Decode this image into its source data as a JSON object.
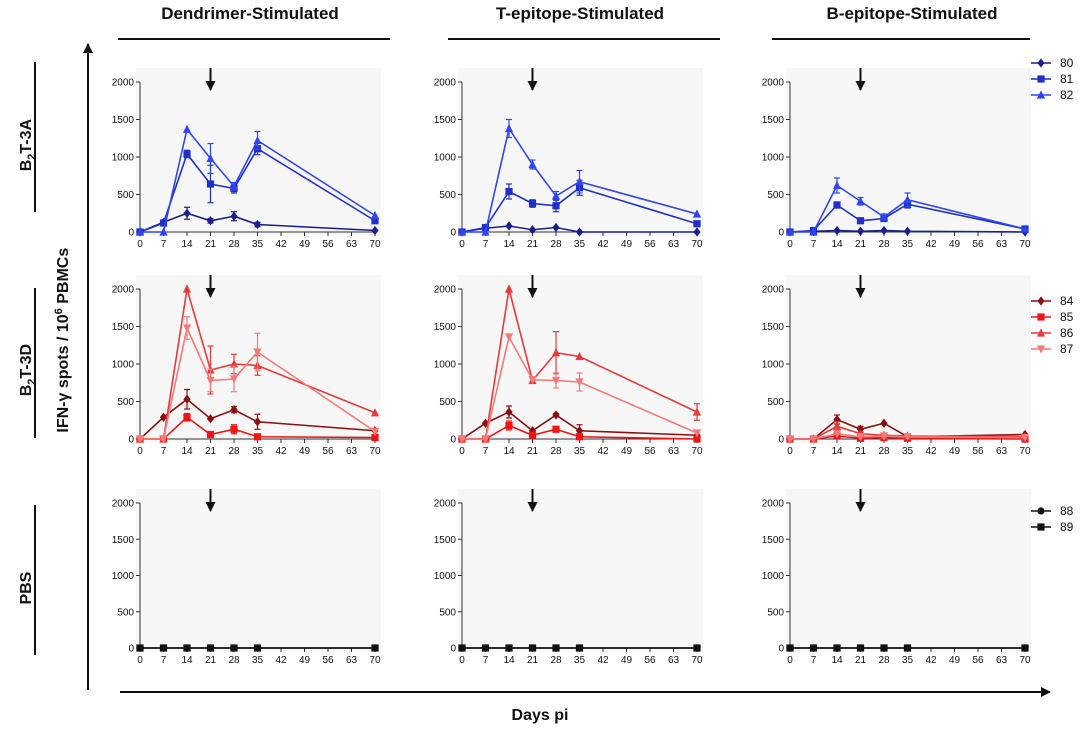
{
  "figure": {
    "ylabel_pre": "IFN-γ spots / 10",
    "ylabel_sup": "6",
    "ylabel_post": " PBMCs",
    "xlabel": "Days pi"
  },
  "columns": [
    "Dendrimer-Stimulated",
    "T-epitope-Stimulated",
    "B-epitope-Stimulated"
  ],
  "rows": [
    {
      "pre": "B",
      "sub": "2",
      "post": "T-3A"
    },
    {
      "pre": "B",
      "sub": "2",
      "post": "T-3D"
    },
    {
      "pre": "",
      "sub": "",
      "post": "PBS"
    }
  ],
  "legends": [
    {
      "items": [
        {
          "label": "80",
          "color": "#1a1f8a",
          "marker": "diamond"
        },
        {
          "label": "81",
          "color": "#1f2fc8",
          "marker": "square"
        },
        {
          "label": "82",
          "color": "#2f45f0",
          "marker": "triangle"
        }
      ]
    },
    {
      "items": [
        {
          "label": "84",
          "color": "#8b0f0f",
          "marker": "diamond"
        },
        {
          "label": "85",
          "color": "#ee1515",
          "marker": "square"
        },
        {
          "label": "86",
          "color": "#e83a3a",
          "marker": "triangle"
        },
        {
          "label": "87",
          "color": "#f47a7a",
          "marker": "triangle-down"
        }
      ]
    },
    {
      "items": [
        {
          "label": "88",
          "color": "#111111",
          "marker": "circle"
        },
        {
          "label": "89",
          "color": "#111111",
          "marker": "square"
        }
      ]
    }
  ],
  "chart_data": [
    {
      "type": "line",
      "row": 0,
      "col": 0,
      "ylim": [
        0,
        2000
      ],
      "arrow_day": 21,
      "x": [
        0,
        7,
        14,
        21,
        28,
        35,
        70
      ],
      "series": [
        {
          "name": "80",
          "values": [
            0,
            130,
            250,
            150,
            210,
            100,
            20
          ],
          "errors": [
            0,
            20,
            80,
            30,
            60,
            30,
            0
          ]
        },
        {
          "name": "81",
          "values": [
            0,
            120,
            1040,
            640,
            580,
            1110,
            150
          ],
          "errors": [
            0,
            0,
            50,
            250,
            60,
            80,
            30
          ]
        },
        {
          "name": "82",
          "values": [
            0,
            0,
            1370,
            980,
            610,
            1220,
            220
          ],
          "errors": [
            0,
            0,
            0,
            200,
            50,
            120,
            0
          ]
        }
      ]
    },
    {
      "type": "line",
      "row": 0,
      "col": 1,
      "ylim": [
        0,
        2000
      ],
      "arrow_day": 21,
      "x": [
        0,
        7,
        14,
        21,
        28,
        35,
        70
      ],
      "series": [
        {
          "name": "80",
          "values": [
            0,
            50,
            80,
            30,
            60,
            0,
            0
          ],
          "errors": [
            0,
            0,
            0,
            0,
            0,
            0,
            0
          ]
        },
        {
          "name": "81",
          "values": [
            0,
            60,
            540,
            380,
            350,
            590,
            110
          ],
          "errors": [
            0,
            0,
            100,
            50,
            80,
            100,
            0
          ]
        },
        {
          "name": "82",
          "values": [
            0,
            0,
            1380,
            900,
            480,
            670,
            240
          ],
          "errors": [
            0,
            0,
            120,
            60,
            60,
            150,
            0
          ]
        }
      ]
    },
    {
      "type": "line",
      "row": 0,
      "col": 2,
      "ylim": [
        0,
        2000
      ],
      "arrow_day": 21,
      "x": [
        0,
        7,
        14,
        21,
        28,
        35,
        70
      ],
      "series": [
        {
          "name": "80",
          "values": [
            0,
            10,
            20,
            10,
            20,
            10,
            0
          ],
          "errors": [
            0,
            0,
            0,
            0,
            0,
            0,
            0
          ]
        },
        {
          "name": "81",
          "values": [
            0,
            20,
            360,
            150,
            180,
            370,
            40
          ],
          "errors": [
            0,
            0,
            40,
            0,
            30,
            50,
            0
          ]
        },
        {
          "name": "82",
          "values": [
            0,
            0,
            620,
            410,
            200,
            430,
            40
          ],
          "errors": [
            0,
            0,
            100,
            50,
            40,
            90,
            0
          ]
        }
      ]
    },
    {
      "type": "line",
      "row": 1,
      "col": 0,
      "ylim": [
        0,
        2000
      ],
      "arrow_day": 21,
      "x": [
        0,
        7,
        14,
        21,
        28,
        35,
        70
      ],
      "series": [
        {
          "name": "84",
          "values": [
            0,
            290,
            530,
            270,
            390,
            230,
            110
          ],
          "errors": [
            0,
            0,
            130,
            0,
            40,
            100,
            0
          ]
        },
        {
          "name": "85",
          "values": [
            0,
            0,
            290,
            60,
            130,
            30,
            20
          ],
          "errors": [
            0,
            0,
            50,
            30,
            60,
            20,
            0
          ]
        },
        {
          "name": "86",
          "values": [
            0,
            0,
            2000,
            920,
            1000,
            980,
            350
          ],
          "errors": [
            0,
            0,
            0,
            320,
            130,
            130,
            0
          ]
        },
        {
          "name": "87",
          "values": [
            0,
            0,
            1480,
            780,
            800,
            1160,
            100
          ],
          "errors": [
            0,
            0,
            150,
            150,
            170,
            250,
            0
          ]
        }
      ]
    },
    {
      "type": "line",
      "row": 1,
      "col": 1,
      "ylim": [
        0,
        2000
      ],
      "arrow_day": 21,
      "x": [
        0,
        7,
        14,
        21,
        28,
        35,
        70
      ],
      "series": [
        {
          "name": "84",
          "values": [
            0,
            210,
            360,
            110,
            320,
            110,
            50
          ],
          "errors": [
            0,
            0,
            80,
            0,
            20,
            80,
            0
          ]
        },
        {
          "name": "85",
          "values": [
            0,
            0,
            180,
            50,
            130,
            30,
            0
          ],
          "errors": [
            0,
            0,
            60,
            0,
            0,
            0,
            0
          ]
        },
        {
          "name": "86",
          "values": [
            0,
            0,
            2000,
            780,
            1150,
            1100,
            360
          ],
          "errors": [
            0,
            0,
            0,
            0,
            280,
            0,
            110
          ]
        },
        {
          "name": "87",
          "values": [
            0,
            0,
            1360,
            790,
            780,
            760,
            80
          ],
          "errors": [
            0,
            0,
            0,
            0,
            100,
            120,
            0
          ]
        }
      ]
    },
    {
      "type": "line",
      "row": 1,
      "col": 2,
      "ylim": [
        0,
        2000
      ],
      "arrow_day": 21,
      "x": [
        0,
        7,
        14,
        21,
        28,
        35,
        70
      ],
      "series": [
        {
          "name": "84",
          "values": [
            0,
            0,
            260,
            130,
            210,
            30,
            60
          ],
          "errors": [
            0,
            0,
            60,
            40,
            0,
            0,
            0
          ]
        },
        {
          "name": "85",
          "values": [
            0,
            0,
            40,
            10,
            20,
            10,
            0
          ],
          "errors": [
            0,
            0,
            0,
            0,
            0,
            0,
            0
          ]
        },
        {
          "name": "86",
          "values": [
            0,
            0,
            170,
            70,
            50,
            40,
            30
          ],
          "errors": [
            0,
            0,
            60,
            0,
            0,
            0,
            0
          ]
        },
        {
          "name": "87",
          "values": [
            0,
            0,
            70,
            30,
            40,
            30,
            20
          ],
          "errors": [
            0,
            0,
            0,
            0,
            0,
            0,
            0
          ]
        }
      ]
    },
    {
      "type": "line",
      "row": 2,
      "col": 0,
      "ylim": [
        0,
        2000
      ],
      "arrow_day": 21,
      "x": [
        0,
        7,
        14,
        21,
        28,
        35,
        70
      ],
      "series": [
        {
          "name": "88",
          "values": [
            0,
            0,
            0,
            0,
            0,
            0,
            0
          ],
          "errors": [
            0,
            0,
            0,
            0,
            0,
            0,
            0
          ]
        },
        {
          "name": "89",
          "values": [
            0,
            0,
            0,
            0,
            0,
            0,
            0
          ],
          "errors": [
            0,
            0,
            0,
            0,
            0,
            0,
            0
          ]
        }
      ]
    },
    {
      "type": "line",
      "row": 2,
      "col": 1,
      "ylim": [
        0,
        2000
      ],
      "arrow_day": 21,
      "x": [
        0,
        7,
        14,
        21,
        28,
        35,
        70
      ],
      "series": [
        {
          "name": "88",
          "values": [
            0,
            0,
            0,
            0,
            0,
            0,
            0
          ],
          "errors": [
            0,
            0,
            0,
            0,
            0,
            0,
            0
          ]
        },
        {
          "name": "89",
          "values": [
            0,
            0,
            0,
            0,
            0,
            0,
            0
          ],
          "errors": [
            0,
            0,
            0,
            0,
            0,
            0,
            0
          ]
        }
      ]
    },
    {
      "type": "line",
      "row": 2,
      "col": 2,
      "ylim": [
        0,
        2000
      ],
      "arrow_day": 21,
      "x": [
        0,
        7,
        14,
        21,
        28,
        35,
        70
      ],
      "series": [
        {
          "name": "88",
          "values": [
            0,
            0,
            0,
            0,
            0,
            0,
            0
          ],
          "errors": [
            0,
            0,
            0,
            0,
            0,
            0,
            0
          ]
        },
        {
          "name": "89",
          "values": [
            0,
            0,
            0,
            0,
            0,
            0,
            0
          ],
          "errors": [
            0,
            0,
            0,
            0,
            0,
            0,
            0
          ]
        }
      ]
    }
  ],
  "axis": {
    "xticks": [
      0,
      7,
      14,
      21,
      28,
      35,
      42,
      49,
      56,
      63,
      70
    ],
    "yticks": [
      0,
      500,
      1000,
      1500,
      2000
    ]
  }
}
